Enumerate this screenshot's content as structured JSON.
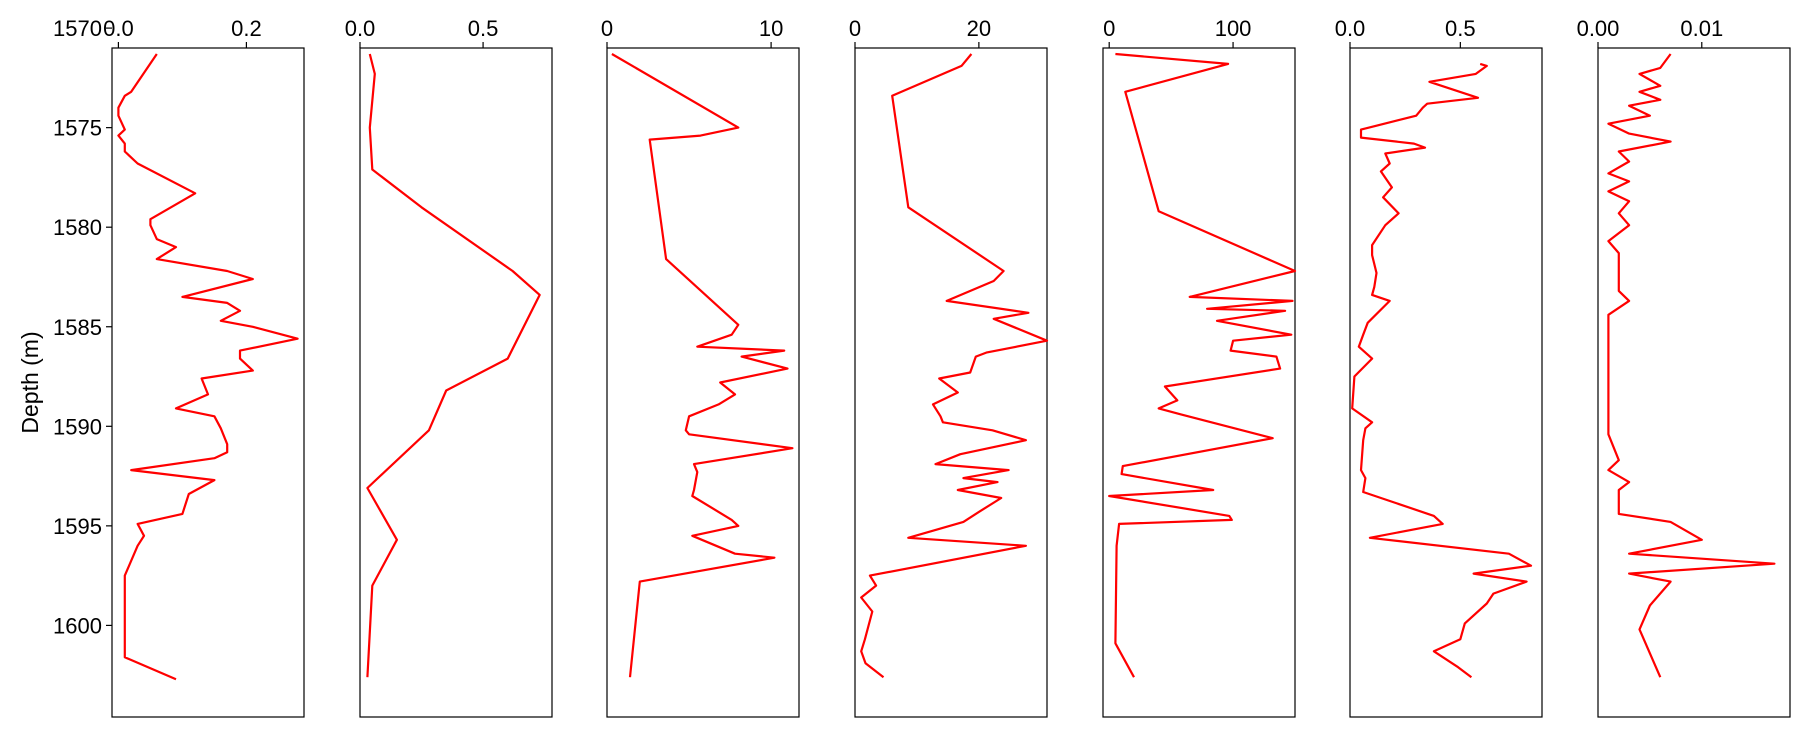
{
  "chart_data": {
    "type": "line",
    "ylabel": "Depth (m)",
    "ylim": [
      1571.0,
      1604.6
    ],
    "yticks": [
      1570,
      1575,
      1580,
      1585,
      1590,
      1595,
      1600
    ],
    "ytick_labels": [
      "1570",
      "1575",
      "1580",
      "1585",
      "1590",
      "1595",
      "1600"
    ],
    "y_inverted": true,
    "line_color": "#ff0000",
    "grid": false,
    "legend": "none",
    "panels": [
      {
        "xlim": [
          -0.01,
          0.29
        ],
        "xticks": [
          0.0,
          0.2
        ],
        "xtick_labels": [
          "0.0",
          "0.2"
        ],
        "depth": [
          1571.3,
          1573.2,
          1573.4,
          1574.0,
          1574.4,
          1575.1,
          1575.4,
          1575.8,
          1576.2,
          1576.8,
          1578.3,
          1579.6,
          1579.9,
          1580.6,
          1581.0,
          1581.6,
          1582.2,
          1582.6,
          1583.5,
          1583.8,
          1584.2,
          1584.7,
          1585.0,
          1585.6,
          1586.2,
          1586.6,
          1587.2,
          1587.6,
          1588.4,
          1589.1,
          1589.5,
          1590.1,
          1590.9,
          1591.3,
          1591.6,
          1592.2,
          1592.7,
          1593.4,
          1594.4,
          1594.9,
          1595.5,
          1596.0,
          1597.5,
          1599.3,
          1601.6,
          1602.7
        ],
        "values": [
          0.06,
          0.02,
          0.01,
          0.0,
          0.0,
          0.01,
          0.0,
          0.01,
          0.01,
          0.03,
          0.12,
          0.05,
          0.05,
          0.06,
          0.09,
          0.06,
          0.17,
          0.21,
          0.1,
          0.17,
          0.19,
          0.16,
          0.21,
          0.28,
          0.19,
          0.19,
          0.21,
          0.13,
          0.14,
          0.09,
          0.15,
          0.16,
          0.17,
          0.17,
          0.15,
          0.02,
          0.15,
          0.11,
          0.1,
          0.03,
          0.04,
          0.03,
          0.01,
          0.01,
          0.01,
          0.09
        ]
      },
      {
        "xlim": [
          0.0,
          0.78
        ],
        "xticks": [
          0.0,
          0.5
        ],
        "xtick_labels": [
          "0.0",
          "0.5"
        ],
        "depth": [
          1571.3,
          1572.3,
          1575.0,
          1577.1,
          1579.0,
          1582.2,
          1583.4,
          1586.6,
          1588.2,
          1590.2,
          1593.1,
          1595.7,
          1598.0,
          1602.6
        ],
        "values": [
          0.04,
          0.06,
          0.04,
          0.05,
          0.25,
          0.62,
          0.73,
          0.6,
          0.35,
          0.28,
          0.03,
          0.15,
          0.05,
          0.03
        ]
      },
      {
        "xlim": [
          0.0,
          11.7
        ],
        "xticks": [
          0,
          10
        ],
        "xtick_labels": [
          "0",
          "10"
        ],
        "depth": [
          1571.3,
          1575.0,
          1575.4,
          1575.6,
          1581.6,
          1584.9,
          1585.4,
          1586.0,
          1586.2,
          1586.5,
          1587.1,
          1587.8,
          1588.4,
          1588.9,
          1589.5,
          1590.2,
          1590.4,
          1591.1,
          1591.9,
          1592.3,
          1593.2,
          1593.5,
          1594.7,
          1595.0,
          1595.5,
          1596.4,
          1596.6,
          1597.8,
          1602.6
        ],
        "values": [
          0.3,
          8.0,
          5.7,
          2.6,
          3.6,
          8.0,
          7.6,
          5.5,
          10.8,
          8.2,
          11.0,
          6.9,
          7.8,
          6.8,
          5.0,
          4.8,
          5.0,
          11.3,
          5.3,
          5.5,
          5.3,
          5.2,
          7.6,
          8.0,
          5.2,
          7.8,
          10.2,
          2.0,
          1.4
        ]
      },
      {
        "xlim": [
          0.0,
          31.0
        ],
        "xticks": [
          0,
          20
        ],
        "xtick_labels": [
          "0",
          "20"
        ],
        "depth": [
          1571.3,
          1571.9,
          1573.4,
          1579.0,
          1582.2,
          1582.7,
          1583.7,
          1584.3,
          1584.6,
          1585.7,
          1586.3,
          1586.5,
          1587.3,
          1587.6,
          1588.3,
          1588.9,
          1589.5,
          1589.8,
          1590.2,
          1590.7,
          1591.4,
          1591.9,
          1592.2,
          1592.6,
          1592.8,
          1593.2,
          1593.6,
          1594.3,
          1594.8,
          1595.6,
          1596.0,
          1597.5,
          1598.0,
          1598.6,
          1599.3,
          1600.7,
          1601.3,
          1601.9,
          1602.6
        ],
        "values": [
          18.8,
          17.2,
          6.0,
          8.6,
          24.0,
          22.4,
          14.8,
          28.0,
          22.4,
          31.0,
          21.2,
          19.5,
          18.6,
          13.6,
          16.6,
          12.6,
          13.8,
          14.2,
          22.2,
          27.6,
          17.0,
          13.0,
          24.8,
          17.5,
          23.0,
          16.6,
          23.6,
          20.0,
          17.5,
          8.6,
          27.6,
          2.4,
          3.4,
          1.0,
          2.8,
          1.6,
          1.0,
          1.7,
          4.6
        ]
      },
      {
        "xlim": [
          -5.0,
          150.0
        ],
        "xticks": [
          0,
          100
        ],
        "xtick_labels": [
          "0",
          "100"
        ],
        "depth": [
          1571.3,
          1571.8,
          1573.2,
          1579.2,
          1582.2,
          1583.5,
          1583.7,
          1584.1,
          1584.2,
          1584.7,
          1585.4,
          1585.7,
          1586.2,
          1586.5,
          1587.1,
          1588.0,
          1588.7,
          1589.1,
          1589.4,
          1590.6,
          1592.0,
          1592.4,
          1593.2,
          1593.5,
          1594.5,
          1594.7,
          1594.9,
          1596.0,
          1600.9,
          1602.6
        ],
        "values": [
          5.0,
          96.0,
          13.0,
          40.0,
          150.0,
          65.0,
          148.0,
          79.0,
          142.0,
          87.0,
          147.0,
          100.0,
          98.0,
          135.0,
          138.0,
          45.0,
          55.0,
          40.0,
          58.0,
          132.0,
          11.0,
          10.0,
          84.0,
          0.0,
          97.0,
          99.0,
          8.0,
          6.0,
          5.0,
          20.0
        ]
      },
      {
        "xlim": [
          0.0,
          0.87
        ],
        "xticks": [
          0.0,
          0.5
        ],
        "xtick_labels": [
          "0.0",
          "0.5"
        ],
        "depth": [
          1571.8,
          1571.9,
          1572.3,
          1572.7,
          1573.5,
          1573.8,
          1574.0,
          1574.4,
          1575.1,
          1575.5,
          1575.8,
          1576.0,
          1576.3,
          1576.8,
          1577.2,
          1578.0,
          1578.5,
          1579.3,
          1579.9,
          1580.9,
          1581.4,
          1582.3,
          1583.0,
          1583.4,
          1583.7,
          1584.8,
          1585.4,
          1586.0,
          1586.6,
          1587.5,
          1589.1,
          1589.8,
          1590.1,
          1590.7,
          1592.2,
          1592.6,
          1593.3,
          1594.5,
          1594.9,
          1595.6,
          1596.4,
          1597.0,
          1597.4,
          1597.8,
          1598.4,
          1598.9,
          1599.9,
          1600.7,
          1601.3,
          1602.1,
          1602.6
        ],
        "values": [
          0.59,
          0.62,
          0.57,
          0.36,
          0.58,
          0.35,
          0.33,
          0.3,
          0.05,
          0.05,
          0.29,
          0.34,
          0.16,
          0.18,
          0.14,
          0.19,
          0.15,
          0.22,
          0.16,
          0.1,
          0.1,
          0.12,
          0.11,
          0.1,
          0.18,
          0.08,
          0.06,
          0.04,
          0.1,
          0.02,
          0.01,
          0.1,
          0.07,
          0.06,
          0.05,
          0.07,
          0.06,
          0.38,
          0.42,
          0.09,
          0.72,
          0.82,
          0.56,
          0.8,
          0.65,
          0.62,
          0.52,
          0.5,
          0.38,
          0.49,
          0.55
        ]
      },
      {
        "xlim": [
          0.0,
          0.0185
        ],
        "xticks": [
          0.0,
          0.01
        ],
        "xtick_labels": [
          "0.00",
          "0.01"
        ],
        "depth": [
          1571.3,
          1572.0,
          1572.3,
          1572.9,
          1573.2,
          1573.6,
          1573.9,
          1574.4,
          1574.8,
          1575.3,
          1575.7,
          1576.2,
          1576.7,
          1577.3,
          1577.7,
          1578.2,
          1578.7,
          1579.3,
          1579.9,
          1580.7,
          1581.3,
          1582.1,
          1583.2,
          1583.7,
          1584.4,
          1587.0,
          1590.4,
          1591.7,
          1592.2,
          1592.8,
          1593.2,
          1593.7,
          1594.4,
          1594.8,
          1595.7,
          1596.4,
          1596.9,
          1597.4,
          1597.8,
          1599.0,
          1600.2,
          1601.4,
          1602.6
        ],
        "values": [
          0.007,
          0.006,
          0.004,
          0.006,
          0.004,
          0.006,
          0.003,
          0.005,
          0.001,
          0.003,
          0.007,
          0.002,
          0.003,
          0.001,
          0.003,
          0.001,
          0.003,
          0.002,
          0.003,
          0.001,
          0.002,
          0.002,
          0.002,
          0.003,
          0.001,
          0.001,
          0.001,
          0.002,
          0.001,
          0.003,
          0.002,
          0.002,
          0.002,
          0.007,
          0.01,
          0.003,
          0.017,
          0.003,
          0.007,
          0.005,
          0.004,
          0.005,
          0.006
        ]
      }
    ]
  }
}
